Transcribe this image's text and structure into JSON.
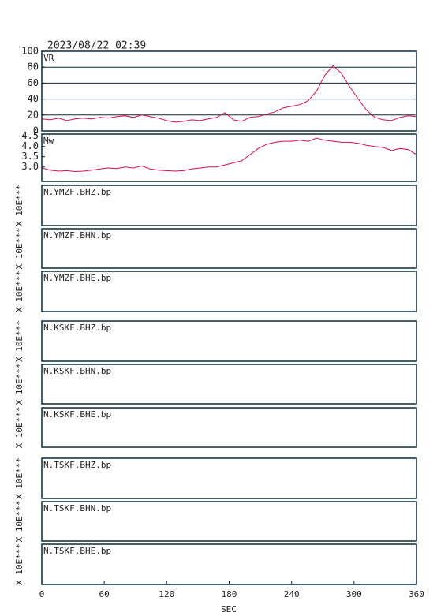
{
  "timestamp": "2023/08/22  02:39",
  "x_axis": {
    "xlim": [
      0,
      360
    ],
    "xticks": [
      0,
      60,
      120,
      180,
      240,
      300,
      360
    ],
    "xlabel": "SEC"
  },
  "chart_data": [
    {
      "type": "line",
      "label": "VR",
      "color": "#d0104a",
      "x": [
        0,
        8,
        16,
        24,
        32,
        40,
        48,
        56,
        64,
        72,
        80,
        88,
        96,
        104,
        112,
        120,
        128,
        136,
        144,
        152,
        160,
        168,
        176,
        184,
        192,
        200,
        208,
        216,
        224,
        232,
        240,
        248,
        256,
        264,
        272,
        280,
        288,
        296,
        304,
        312,
        320,
        328,
        336,
        344,
        352,
        360
      ],
      "values": [
        15,
        14,
        16,
        13,
        15,
        16,
        15,
        17,
        16,
        18,
        19,
        17,
        20,
        18,
        16,
        13,
        11,
        12,
        14,
        13,
        15,
        17,
        23,
        14,
        12,
        17,
        18,
        21,
        24,
        29,
        31,
        33,
        38,
        50,
        70,
        82,
        72,
        55,
        40,
        26,
        17,
        14,
        13,
        17,
        19,
        18
      ],
      "ylim": [
        0,
        100
      ],
      "yticks": [
        0,
        20,
        40,
        60,
        80,
        100
      ],
      "grid": true
    },
    {
      "type": "line",
      "label": "Mw",
      "color": "#d0104a",
      "x": [
        0,
        8,
        16,
        24,
        32,
        40,
        48,
        56,
        64,
        72,
        80,
        88,
        96,
        104,
        112,
        120,
        128,
        136,
        144,
        152,
        160,
        168,
        176,
        184,
        192,
        200,
        208,
        216,
        224,
        232,
        240,
        248,
        256,
        264,
        272,
        280,
        288,
        296,
        304,
        312,
        320,
        328,
        336,
        344,
        352,
        360
      ],
      "values": [
        2.95,
        2.85,
        2.8,
        2.82,
        2.78,
        2.8,
        2.85,
        2.9,
        2.95,
        2.92,
        3.0,
        2.95,
        3.05,
        2.9,
        2.85,
        2.82,
        2.8,
        2.82,
        2.9,
        2.95,
        3.0,
        3.0,
        3.1,
        3.2,
        3.3,
        3.6,
        3.9,
        4.1,
        4.2,
        4.25,
        4.25,
        4.3,
        4.25,
        4.4,
        4.3,
        4.25,
        4.2,
        4.2,
        4.15,
        4.05,
        4.0,
        3.95,
        3.8,
        3.9,
        3.85,
        3.6
      ],
      "ylim": [
        2.3,
        4.6
      ],
      "yticks": [
        {
          "value": 3.0,
          "label": "3.0"
        },
        {
          "value": 3.5,
          "label": "3.5"
        },
        {
          "value": 4.0,
          "label": "4.0"
        },
        4.5
      ],
      "grid": false
    }
  ],
  "panels": [
    {
      "label": "N.YMZF.BHZ.bp",
      "scale_label": "X 10E***"
    },
    {
      "label": "N.YMZF.BHN.bp",
      "scale_label": "X 10E***"
    },
    {
      "label": "N.YMZF.BHE.bp",
      "scale_label": "X 10E***"
    },
    {
      "label": "N.KSKF.BHZ.bp",
      "scale_label": "X 10E***"
    },
    {
      "label": "N.KSKF.BHN.bp",
      "scale_label": "X 10E***"
    },
    {
      "label": "N.KSKF.BHE.bp",
      "scale_label": "X 10E***"
    },
    {
      "label": "N.TSKF.BHZ.bp",
      "scale_label": "X 10E***"
    },
    {
      "label": "N.TSKF.BHN.bp",
      "scale_label": "X 10E***"
    },
    {
      "label": "N.TSKF.BHE.bp",
      "scale_label": "X 10E***"
    }
  ]
}
